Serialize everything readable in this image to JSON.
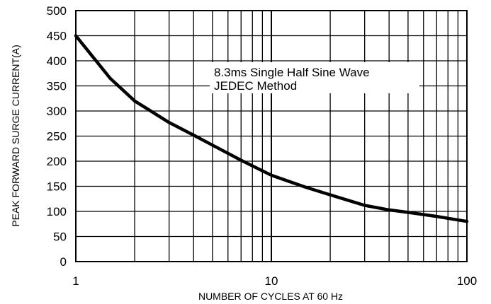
{
  "chart_data": {
    "type": "line",
    "x_scale": "log",
    "xlim": [
      1,
      100
    ],
    "ylim": [
      0,
      500
    ],
    "xlabel": "NUMBER OF CYCLES AT 60 Hz",
    "ylabel": "PEAK FORWARD SURGE CURRENT(A)",
    "x_tick_labels": [
      "1",
      "10",
      "100"
    ],
    "y_tick_labels": [
      "0",
      "50",
      "100",
      "150",
      "200",
      "250",
      "300",
      "350",
      "400",
      "450",
      "500"
    ],
    "annotation": [
      "8.3ms Single Half Sine Wave",
      "JEDEC Method"
    ],
    "grid": true,
    "series": [
      {
        "x": [
          1,
          1.5,
          2,
          3,
          4,
          5,
          7,
          10,
          15,
          20,
          30,
          40,
          50,
          70,
          100
        ],
        "y": [
          450,
          365,
          320,
          277,
          252,
          232,
          202,
          172,
          148,
          133,
          112,
          103,
          98,
          90,
          80
        ]
      }
    ],
    "colors": {
      "line": "#000000",
      "grid": "#000000"
    }
  }
}
